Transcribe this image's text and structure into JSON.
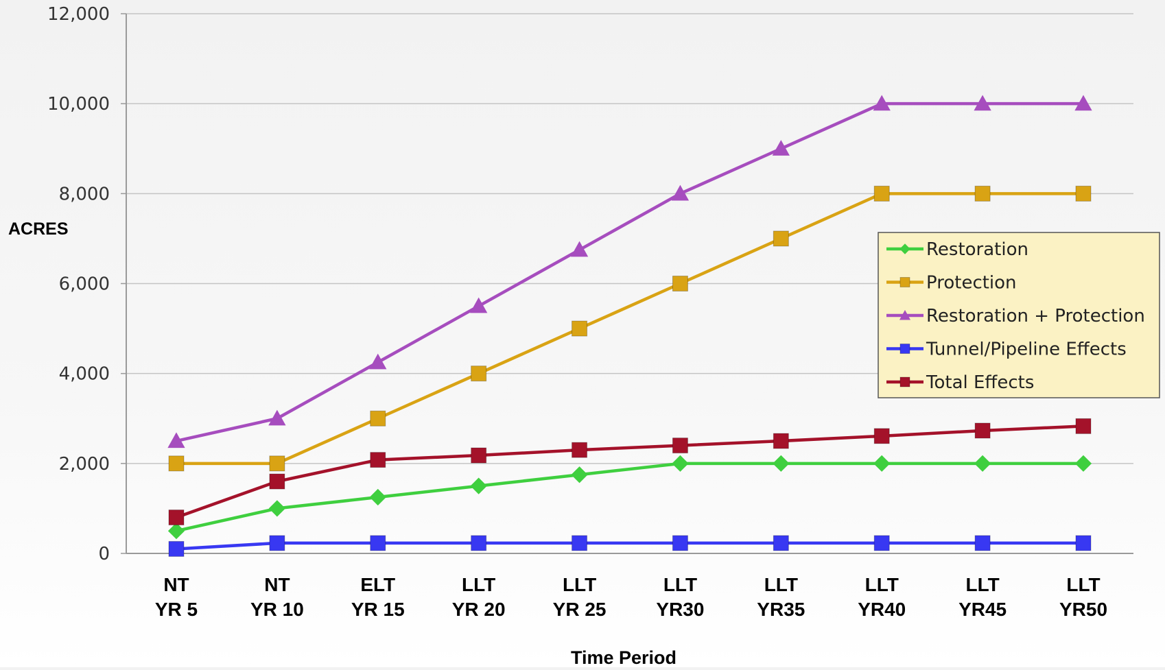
{
  "chart_data": {
    "type": "line",
    "title": "",
    "xlabel": "Time Period",
    "ylabel": "ACRES",
    "ylim": [
      0,
      12000
    ],
    "yticks": [
      0,
      2000,
      4000,
      6000,
      8000,
      10000,
      12000
    ],
    "ytick_labels": [
      "0",
      "2,000",
      "4,000",
      "6,000",
      "8,000",
      "10,000",
      "12,000"
    ],
    "grid": true,
    "legend_position": "right",
    "categories": [
      [
        "NT",
        "YR 5"
      ],
      [
        "NT",
        "YR 10"
      ],
      [
        "ELT",
        "YR 15"
      ],
      [
        "LLT",
        "YR 20"
      ],
      [
        "LLT",
        "YR 25"
      ],
      [
        "LLT",
        "YR30"
      ],
      [
        "LLT",
        "YR35"
      ],
      [
        "LLT",
        "YR40"
      ],
      [
        "LLT",
        "YR45"
      ],
      [
        "LLT",
        "YR50"
      ]
    ],
    "series": [
      {
        "name": "Restoration",
        "color": "#3fcf3f",
        "marker": "diamond",
        "values": [
          500,
          1000,
          1250,
          1500,
          1750,
          2000,
          2000,
          2000,
          2000,
          2000
        ]
      },
      {
        "name": "Protection",
        "color": "#d9a314",
        "marker": "square",
        "values": [
          2000,
          2000,
          3000,
          4000,
          5000,
          6000,
          7000,
          8000,
          8000,
          8000
        ]
      },
      {
        "name": "Restoration + Protection",
        "color": "#a64dbe",
        "marker": "triangle",
        "values": [
          2500,
          3000,
          4250,
          5500,
          6750,
          8000,
          9000,
          10000,
          10000,
          10000
        ]
      },
      {
        "name": "Tunnel/Pipeline Effects",
        "color": "#3838f2",
        "marker": "square",
        "values": [
          100,
          230,
          230,
          230,
          230,
          230,
          230,
          230,
          230,
          230
        ]
      },
      {
        "name": "Total Effects",
        "color": "#a4122a",
        "marker": "square",
        "values": [
          800,
          1600,
          2080,
          2180,
          2300,
          2400,
          2500,
          2610,
          2730,
          2830
        ]
      }
    ]
  }
}
